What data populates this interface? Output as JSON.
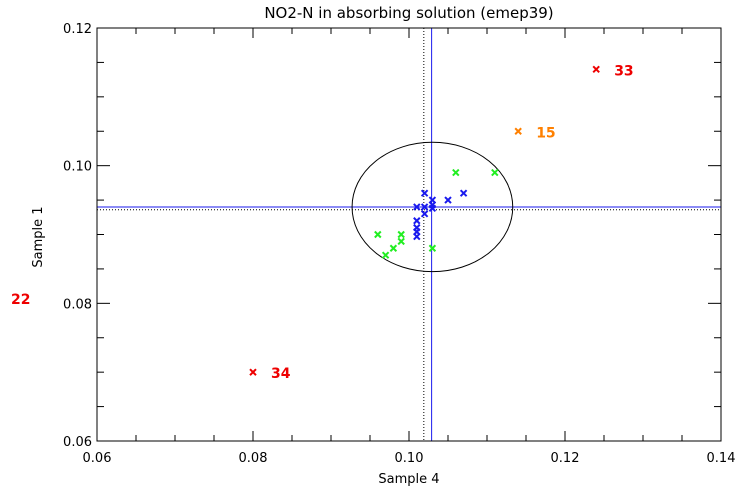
{
  "chart_data": {
    "type": "scatter",
    "title": "NO2-N in absorbing solution (emep39)",
    "xlabel": "Sample 4",
    "ylabel": "Sample 1",
    "xlim": [
      0.06,
      0.14
    ],
    "ylim": [
      0.06,
      0.12
    ],
    "x_ticks": [
      0.06,
      0.08,
      0.1,
      0.12,
      0.14
    ],
    "x_tick_labels": [
      "0.06",
      "0.08",
      "0.10",
      "0.12",
      "0.14"
    ],
    "y_ticks": [
      0.06,
      0.08,
      0.1,
      0.12
    ],
    "y_tick_labels": [
      "0.06",
      "0.08",
      "0.10",
      "0.12"
    ],
    "minor_tick_step": 0.005,
    "grid": false,
    "colors": {
      "blue": "#1a1aee",
      "green": "#22ee22",
      "red": "#ee0000",
      "orange": "#ff8000",
      "axis": "#000000"
    },
    "reference_lines": {
      "median_x": 0.1029,
      "median_y": 0.094,
      "assigned_x": 0.1019,
      "assigned_y": 0.0936
    },
    "ellipse": {
      "cx": 0.103,
      "cy": 0.094,
      "rx": 0.0103,
      "ry": 0.0094
    },
    "series": [
      {
        "name": "blue",
        "color": "blue",
        "points": [
          [
            0.102,
            0.096
          ],
          [
            0.103,
            0.095
          ],
          [
            0.103,
            0.0943
          ],
          [
            0.105,
            0.095
          ],
          [
            0.107,
            0.096
          ],
          [
            0.101,
            0.094
          ],
          [
            0.102,
            0.094
          ],
          [
            0.103,
            0.0938
          ],
          [
            0.102,
            0.093
          ],
          [
            0.101,
            0.092
          ],
          [
            0.101,
            0.091
          ],
          [
            0.101,
            0.0904
          ],
          [
            0.101,
            0.0897
          ]
        ]
      },
      {
        "name": "green",
        "color": "green",
        "points": [
          [
            0.106,
            0.099
          ],
          [
            0.111,
            0.099
          ],
          [
            0.096,
            0.09
          ],
          [
            0.099,
            0.09
          ],
          [
            0.099,
            0.089
          ],
          [
            0.098,
            0.088
          ],
          [
            0.097,
            0.087
          ],
          [
            0.103,
            0.088
          ]
        ]
      }
    ],
    "labelled_points": [
      {
        "label": "33",
        "x": 0.124,
        "y": 0.114,
        "color": "red"
      },
      {
        "label": "15",
        "x": 0.114,
        "y": 0.105,
        "color": "orange"
      },
      {
        "label": "34",
        "x": 0.08,
        "y": 0.07,
        "color": "red"
      }
    ],
    "offscale_labels": [
      {
        "label": "22",
        "color": "red",
        "side": "left"
      }
    ]
  }
}
